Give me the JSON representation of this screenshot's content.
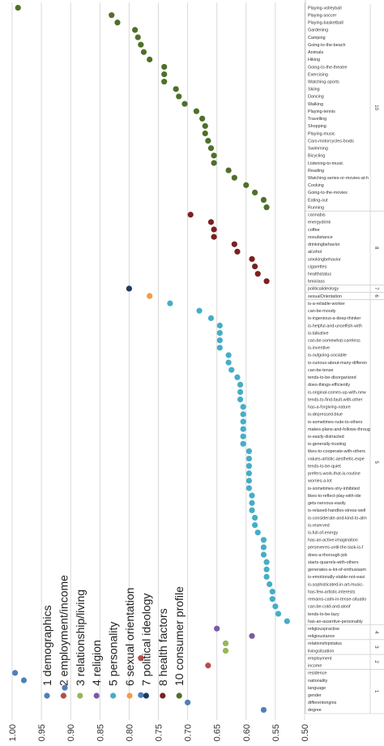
{
  "chart_data": {
    "type": "scatter",
    "orientation": "rotated",
    "xaxis": {
      "range": [
        1.0,
        0.5
      ],
      "ticks": [
        "1.00",
        "0.95",
        "0.90",
        "0.85",
        "0.80",
        "0.75",
        "0.70",
        "0.65",
        "0.60",
        "0.55",
        "0.50"
      ],
      "grid": true
    },
    "legend": {
      "placement": "bottom-left",
      "entries": [
        {
          "label": "1 demographics",
          "color": "#4f7fb9"
        },
        {
          "label": "2 employment/income",
          "color": "#b74c47"
        },
        {
          "label": "3 relationship/living",
          "color": "#94b857"
        },
        {
          "label": "4 religion",
          "color": "#7b59a4"
        },
        {
          "label": "5 personality",
          "color": "#46adc6"
        },
        {
          "label": "6 sexual orientation",
          "color": "#f59a47"
        },
        {
          "label": "7 political ideology",
          "color": "#1f3b63"
        },
        {
          "label": "8 health factors",
          "color": "#7b2020"
        },
        {
          "label": "10 consumer profile",
          "color": "#4e7029"
        }
      ]
    },
    "groups": [
      {
        "id": "10",
        "color": "#4e7029",
        "items": [
          {
            "label": "Playing-volleyball",
            "value": 0.99
          },
          {
            "label": "Playing-soccer",
            "value": 0.83
          },
          {
            "label": "Playing-basketball",
            "value": 0.82
          },
          {
            "label": "Gardening",
            "value": 0.79
          },
          {
            "label": "Camping",
            "value": 0.785
          },
          {
            "label": "Going-to-the-beach",
            "value": 0.78
          },
          {
            "label": "Animals",
            "value": 0.775
          },
          {
            "label": "Hiking",
            "value": 0.765
          },
          {
            "label": "Going-to-the-theatre",
            "value": 0.74
          },
          {
            "label": "Exercising",
            "value": 0.74
          },
          {
            "label": "Watching-sports",
            "value": 0.74
          },
          {
            "label": "Skiing",
            "value": 0.72
          },
          {
            "label": "Dancing",
            "value": 0.715
          },
          {
            "label": "Walking",
            "value": 0.705
          },
          {
            "label": "Playing-tennis",
            "value": 0.685
          },
          {
            "label": "Travelling",
            "value": 0.675
          },
          {
            "label": "Shopping",
            "value": 0.67
          },
          {
            "label": "Playing-music",
            "value": 0.67
          },
          {
            "label": "Cars-motorcycles-boats",
            "value": 0.665
          },
          {
            "label": "Swimming",
            "value": 0.66
          },
          {
            "label": "Bicycling",
            "value": 0.655
          },
          {
            "label": "Listening-to-music",
            "value": 0.655
          },
          {
            "label": "Reading",
            "value": 0.63
          },
          {
            "label": "Watching-series-or-movies-at-h",
            "value": 0.62
          },
          {
            "label": "Cooking",
            "value": 0.6
          },
          {
            "label": "Going-to-the-movies",
            "value": 0.585
          },
          {
            "label": "Eating-out",
            "value": 0.57
          },
          {
            "label": "Running",
            "value": 0.565
          }
        ]
      },
      {
        "id": "8",
        "color": "#7b2020",
        "items": [
          {
            "label": "cannabis",
            "value": 0.695
          },
          {
            "label": "energydrink",
            "value": 0.66
          },
          {
            "label": "coffee",
            "value": 0.655
          },
          {
            "label": "nosubstance",
            "value": 0.655
          },
          {
            "label": "drinkingbehavior",
            "value": 0.62
          },
          {
            "label": "alcohol",
            "value": 0.615
          },
          {
            "label": "smokingbehavior",
            "value": 0.59
          },
          {
            "label": "cigarettes",
            "value": 0.585
          },
          {
            "label": "healthstatus",
            "value": 0.58
          },
          {
            "label": "bmiclass",
            "value": 0.565
          }
        ]
      },
      {
        "id": "7",
        "color": "#1f3b63",
        "items": [
          {
            "label": "politicalideology",
            "value": 0.8
          }
        ]
      },
      {
        "id": "6",
        "color": "#f59a47",
        "items": [
          {
            "label": "sexualOrientation",
            "value": 0.765
          }
        ]
      },
      {
        "id": "5",
        "color": "#46adc6",
        "items": [
          {
            "label": "is-a-reliable-worker",
            "value": 0.73
          },
          {
            "label": "can-be-moody",
            "value": 0.68
          },
          {
            "label": "is-ingenious-a-deep-thinker",
            "value": 0.66
          },
          {
            "label": "is-helpful-and-unselfish-with",
            "value": 0.645
          },
          {
            "label": "is-talkative",
            "value": 0.645
          },
          {
            "label": "can-be-somewhat-careless",
            "value": 0.645
          },
          {
            "label": "is-inventive",
            "value": 0.645
          },
          {
            "label": "is-outgoing-sociable",
            "value": 0.63
          },
          {
            "label": "is-curious-about-many-differen",
            "value": 0.63
          },
          {
            "label": "can-be-tense",
            "value": 0.625
          },
          {
            "label": "tends-to-be-disorganized",
            "value": 0.615
          },
          {
            "label": "does-things-efficiently",
            "value": 0.61
          },
          {
            "label": "is-original-comes-up-with-new",
            "value": 0.61
          },
          {
            "label": "tends-to-find-fault-with-other",
            "value": 0.61
          },
          {
            "label": "has-a-forgiving-nature",
            "value": 0.605
          },
          {
            "label": "is-depressed-blue",
            "value": 0.605
          },
          {
            "label": "is-sometimes-rude-to-others",
            "value": 0.605
          },
          {
            "label": "makes-plans-and-follows-throug",
            "value": 0.605
          },
          {
            "label": "is-easily-distracted",
            "value": 0.605
          },
          {
            "label": "is-generally-trusting",
            "value": 0.605
          },
          {
            "label": "likes-to-cooperate-with-others",
            "value": 0.595
          },
          {
            "label": "values-artistic-aesthetic-expe",
            "value": 0.595
          },
          {
            "label": "tends-to-be-quiet",
            "value": 0.595
          },
          {
            "label": "prefers-work-that-is-routine",
            "value": 0.595
          },
          {
            "label": "worries-a-lot",
            "value": 0.595
          },
          {
            "label": "is-sometimes-shy-inhibited",
            "value": 0.595
          },
          {
            "label": "likes-to-reflect-play-with-ide",
            "value": 0.59
          },
          {
            "label": "gets-nervous-easily",
            "value": 0.59
          },
          {
            "label": "is-relaxed-handles-stress-well",
            "value": 0.59
          },
          {
            "label": "is-considerate-and-kind-to-alm",
            "value": 0.585
          },
          {
            "label": "is-reserved",
            "value": 0.585
          },
          {
            "label": "is-full-of-energy",
            "value": 0.58
          },
          {
            "label": "has-an-active-imagination",
            "value": 0.57
          },
          {
            "label": "perseveres-until-the-task-is-f",
            "value": 0.57
          },
          {
            "label": "does-a-thorough-job",
            "value": 0.57
          },
          {
            "label": "starts-quarrels-with-others",
            "value": 0.565
          },
          {
            "label": "generates-a-lot-of-enthusiasm",
            "value": 0.565
          },
          {
            "label": "is-emotionally-stable-not-easi",
            "value": 0.565
          },
          {
            "label": "is-sophisticated-in-art-music-",
            "value": 0.56
          },
          {
            "label": "has-few-artistic-interests",
            "value": 0.555
          },
          {
            "label": "remains-calm-in-tense-situatio",
            "value": 0.555
          },
          {
            "label": "can-be-cold-and-aloof",
            "value": 0.55
          },
          {
            "label": "tends-to-be-lazy",
            "value": 0.545
          },
          {
            "label": "has-an-assertive-personality",
            "value": 0.53
          }
        ]
      },
      {
        "id": "4",
        "color": "#7b59a4",
        "items": [
          {
            "label": "religiouspractise",
            "value": 0.65
          },
          {
            "label": "religioustance",
            "value": 0.59
          }
        ]
      },
      {
        "id": "3",
        "color": "#94b857",
        "items": [
          {
            "label": "relationshipstatus",
            "value": 0.635
          },
          {
            "label": "livingsituation",
            "value": 0.635
          }
        ]
      },
      {
        "id": "2",
        "color": "#b74c47",
        "items": [
          {
            "label": "employment",
            "value": 0.78
          },
          {
            "label": "income",
            "value": 0.665
          }
        ]
      },
      {
        "id": "1",
        "color": "#4f7fb9",
        "items": [
          {
            "label": "residence",
            "value": 0.995
          },
          {
            "label": "nationality",
            "value": 0.98
          },
          {
            "label": "language",
            "value": 0.91
          },
          {
            "label": "gender",
            "value": 0.78
          },
          {
            "label": "differentorigins",
            "value": 0.7
          },
          {
            "label": "degree",
            "value": 0.57
          }
        ]
      }
    ]
  }
}
